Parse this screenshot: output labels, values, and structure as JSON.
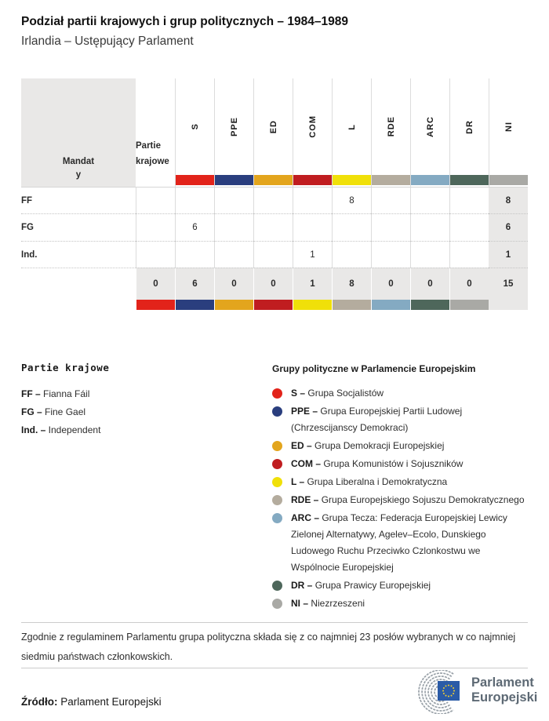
{
  "title": "Podział partii krajowych i grup politycznych – 1984–1989",
  "subtitle": "Irlandia – Ustępujący Parlament",
  "chart_data": {
    "type": "table",
    "row_label_header": "Partie krajowe",
    "seats_header": "Mandaty",
    "groups": [
      "S",
      "PPE",
      "ED",
      "COM",
      "L",
      "RDE",
      "ARC",
      "DR",
      "NI"
    ],
    "group_colors": {
      "S": "#e2231a",
      "PPE": "#2a3e7e",
      "ED": "#e3a51d",
      "COM": "#c01d20",
      "L": "#f0e009",
      "RDE": "#b4ac9e",
      "ARC": "#84aac2",
      "DR": "#4e675b",
      "NI": "#a9a9a5"
    },
    "rows": [
      {
        "party": "FF",
        "values": [
          "",
          "",
          "",
          "",
          "",
          "8",
          "",
          "",
          ""
        ],
        "total": "8"
      },
      {
        "party": "FG",
        "values": [
          "",
          "6",
          "",
          "",
          "",
          "",
          "",
          "",
          ""
        ],
        "total": "6"
      },
      {
        "party": "Ind.",
        "values": [
          "",
          "",
          "",
          "",
          "1",
          "",
          "",
          "",
          ""
        ],
        "total": "1"
      }
    ],
    "totals": [
      "0",
      "6",
      "0",
      "0",
      "1",
      "8",
      "0",
      "0",
      "0"
    ],
    "grand_total": "15"
  },
  "legend_parties": {
    "header": "Partie krajowe",
    "items": [
      {
        "abbr": "FF",
        "name": "Fianna Fáil"
      },
      {
        "abbr": "FG",
        "name": "Fine Gael"
      },
      {
        "abbr": "Ind.",
        "name": "Independent"
      }
    ]
  },
  "legend_groups": {
    "header": "Grupy polityczne w Parlamencie Europejskim",
    "items": [
      {
        "abbr": "S",
        "name": "Grupa Socjalistów",
        "color": "#e2231a"
      },
      {
        "abbr": "PPE",
        "name": "Grupa Europejskiej Partii Ludowej (Chrzescijanscy Demokraci)",
        "color": "#2a3e7e"
      },
      {
        "abbr": "ED",
        "name": "Grupa Demokracji Europejskiej",
        "color": "#e3a51d"
      },
      {
        "abbr": "COM",
        "name": "Grupa Komunistów i Sojuszników",
        "color": "#c01d20"
      },
      {
        "abbr": "L",
        "name": "Grupa Liberalna i Demokratyczna",
        "color": "#f0e009"
      },
      {
        "abbr": "RDE",
        "name": "Grupa Europejskiego Sojuszu Demokratycznego",
        "color": "#b4ac9e"
      },
      {
        "abbr": "ARC",
        "name": "Grupa Tecza: Federacja Europejskiej Lewicy Zielonej Alternatywy, Agelev–Ecolo, Dunskiego Ludowego Ruchu Przeciwko Czlonkostwu we Wspólnocie Europejskiej",
        "color": "#84aac2"
      },
      {
        "abbr": "DR",
        "name": "Grupa Prawicy Europejskiej",
        "color": "#4e675b"
      },
      {
        "abbr": "NI",
        "name": "Niezrzeszeni",
        "color": "#a9a9a5"
      }
    ]
  },
  "footnote": "Zgodnie z regulaminem Parlamentu grupa polityczna składa się z co najmniej 23 posłów wybranych w co najmniej siedmiu państwach członkowskich.",
  "source": {
    "label": "Źródło:",
    "text": "Parlament Europejski"
  },
  "logo": {
    "line1": "Parlament",
    "line2": "Europejski"
  }
}
